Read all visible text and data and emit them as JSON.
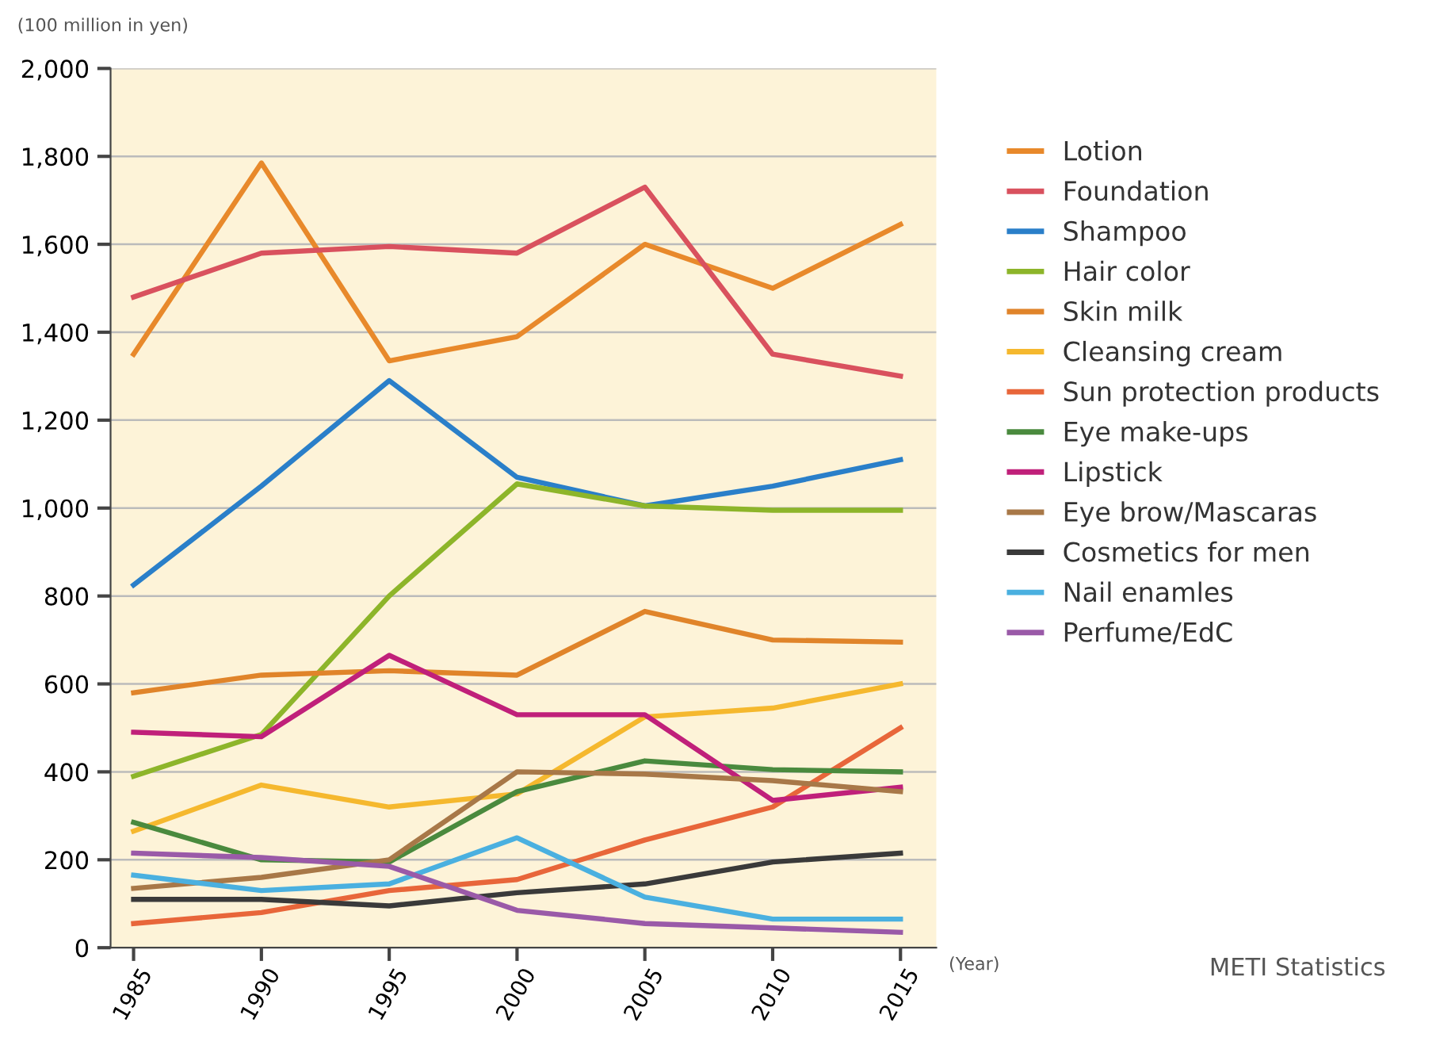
{
  "chart_data": {
    "type": "line",
    "ylabel": "(100 million in yen)",
    "xlabel": "(Year)",
    "x": [
      1985,
      1990,
      1995,
      2000,
      2005,
      2010,
      2015
    ],
    "xlim": [
      1984.1,
      2016.4
    ],
    "xticks": [
      1985,
      1990,
      1995,
      2000,
      2005,
      2010,
      2015
    ],
    "ylim": [
      0,
      2000
    ],
    "yticks": [
      {
        "value": 0,
        "label": "0"
      },
      {
        "value": 200,
        "label": "200"
      },
      {
        "value": 400,
        "label": "400"
      },
      {
        "value": 600,
        "label": "600"
      },
      {
        "value": 800,
        "label": "800"
      },
      {
        "value": 1000,
        "label": "1,000"
      },
      {
        "value": 1200,
        "label": "1,200"
      },
      {
        "value": 1400,
        "label": "1,400"
      },
      {
        "value": 1600,
        "label": "1,600"
      },
      {
        "value": 1800,
        "label": "1,800"
      },
      {
        "value": 2000,
        "label": "2,000"
      }
    ],
    "grid": "y",
    "legend": "right",
    "marker": "none",
    "line_style": "solid",
    "annotations": [
      "METI Statistics"
    ],
    "series": [
      {
        "name": "Lotion",
        "color": "#e8892b",
        "values": [
          1350,
          1785,
          1335,
          1390,
          1600,
          1500,
          1645
        ]
      },
      {
        "name": "Foundation",
        "color": "#d9515e",
        "values": [
          1480,
          1580,
          1595,
          1580,
          1730,
          1350,
          1300
        ]
      },
      {
        "name": "Shampoo",
        "color": "#2a7fc9",
        "values": [
          825,
          1050,
          1290,
          1070,
          1005,
          1050,
          1110
        ]
      },
      {
        "name": "Hair color",
        "color": "#8db52a",
        "values": [
          390,
          485,
          800,
          1055,
          1005,
          995,
          995
        ]
      },
      {
        "name": "Skin milk",
        "color": "#e0842a",
        "values": [
          580,
          620,
          630,
          620,
          765,
          700,
          695
        ]
      },
      {
        "name": "Cleansing cream",
        "color": "#f5b82e",
        "values": [
          265,
          370,
          320,
          350,
          525,
          545,
          600
        ]
      },
      {
        "name": "Sun protection products",
        "color": "#e8663a",
        "values": [
          55,
          80,
          130,
          155,
          245,
          320,
          500
        ]
      },
      {
        "name": "Eye make-ups",
        "color": "#4a8a3e",
        "values": [
          285,
          200,
          195,
          355,
          425,
          405,
          400
        ]
      },
      {
        "name": "Lipstick",
        "color": "#c0207a",
        "values": [
          490,
          480,
          665,
          530,
          530,
          335,
          365
        ]
      },
      {
        "name": "Eye brow/Mascaras",
        "color": "#a87848",
        "values": [
          135,
          160,
          200,
          400,
          395,
          380,
          355
        ]
      },
      {
        "name": "Cosmetics for men",
        "color": "#3a3a3a",
        "values": [
          110,
          110,
          95,
          125,
          145,
          195,
          215
        ]
      },
      {
        "name": "Nail enamles",
        "color": "#4ab0e0",
        "values": [
          165,
          130,
          145,
          250,
          115,
          65,
          65
        ]
      },
      {
        "name": "Perfume/EdC",
        "color": "#9a5aa8",
        "values": [
          215,
          205,
          185,
          85,
          55,
          45,
          35
        ]
      }
    ]
  }
}
